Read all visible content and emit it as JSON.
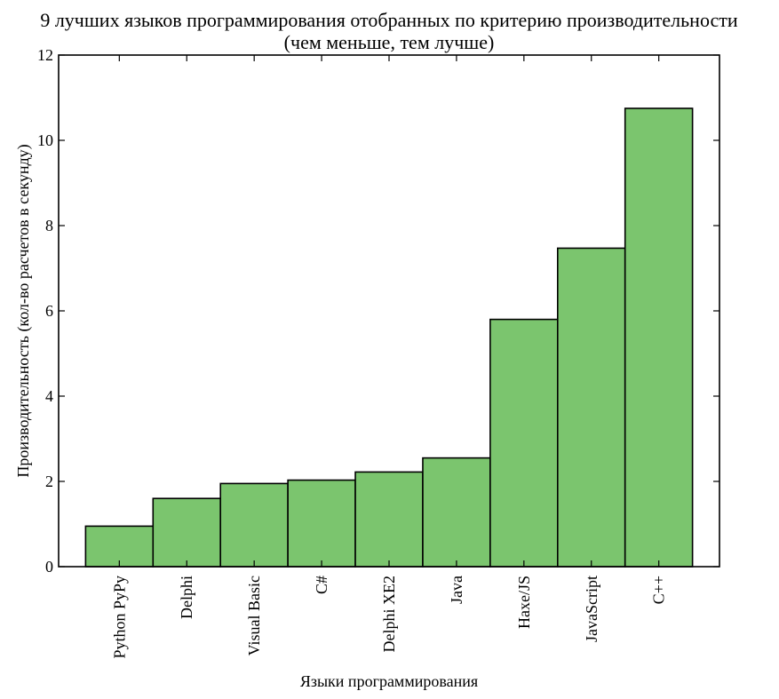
{
  "chart_data": {
    "type": "bar",
    "title_line1": "9 лучших языков программирования отобранных по критерию производительности",
    "title_line2": "(чем меньше, тем лучше)",
    "xlabel": "Языки программирования",
    "ylabel": "Производительность (кол-во расчетов в секунду)",
    "categories": [
      "Python PyPy",
      "Delphi",
      "Visual Basic",
      "C#",
      "Delphi XE2",
      "Java",
      "Haxe/JS",
      "JavaScript",
      "C++"
    ],
    "values": [
      0.95,
      1.6,
      1.95,
      2.03,
      2.22,
      2.55,
      5.8,
      7.47,
      10.75
    ],
    "ylim": [
      0,
      12
    ],
    "yticks": [
      0,
      2,
      4,
      6,
      8,
      10,
      12
    ],
    "bar_color": "#7bc56e",
    "grid": false
  }
}
